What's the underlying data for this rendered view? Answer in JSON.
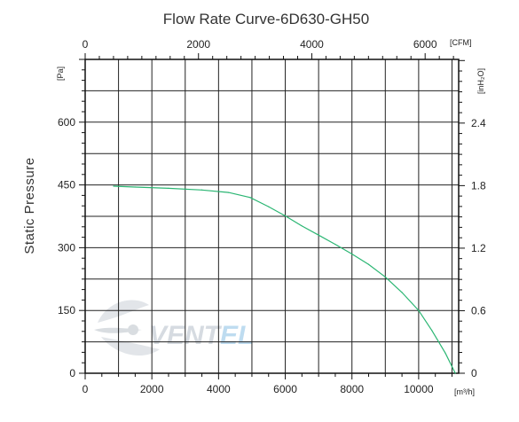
{
  "chart_data": {
    "type": "line",
    "title": "Flow Rate Curve-6D630-GH50",
    "ylabel": "Static Pressure",
    "y_unit": "[Pa]",
    "x_unit": "[m³/h]",
    "top_unit": "[CFM]",
    "right_unit": "[inH₂O]",
    "xlim": [
      0,
      11200
    ],
    "ylim": [
      0,
      750
    ],
    "top_xlim": [
      0,
      6592
    ],
    "right_ylim": [
      0,
      3.011
    ],
    "x_ticks": [
      0,
      2000,
      4000,
      6000,
      8000,
      10000
    ],
    "y_ticks": [
      0,
      150,
      300,
      450,
      600
    ],
    "top_ticks": [
      0,
      2000,
      4000,
      6000
    ],
    "right_ticks": [
      0,
      0.6,
      1.2,
      1.8,
      2.4
    ],
    "x_grid_step": 1000,
    "y_grid_step": 75,
    "grid": true,
    "curve_color": "#2bb673",
    "series": [
      {
        "name": "",
        "x": [
          850,
          1500,
          2500,
          3500,
          4300,
          4950,
          5500,
          6000,
          6500,
          7000,
          7500,
          8000,
          8500,
          9000,
          9500,
          10000,
          10400,
          10800,
          11100
        ],
        "y": [
          447,
          445,
          442,
          438,
          432,
          420,
          398,
          376,
          352,
          330,
          308,
          285,
          260,
          230,
          193,
          150,
          102,
          48,
          0
        ]
      }
    ]
  },
  "watermark": {
    "logo_text_a": "VENT",
    "logo_text_b": "EL",
    "color_a": "#d2d8de",
    "color_b": "#b8d9ef"
  }
}
